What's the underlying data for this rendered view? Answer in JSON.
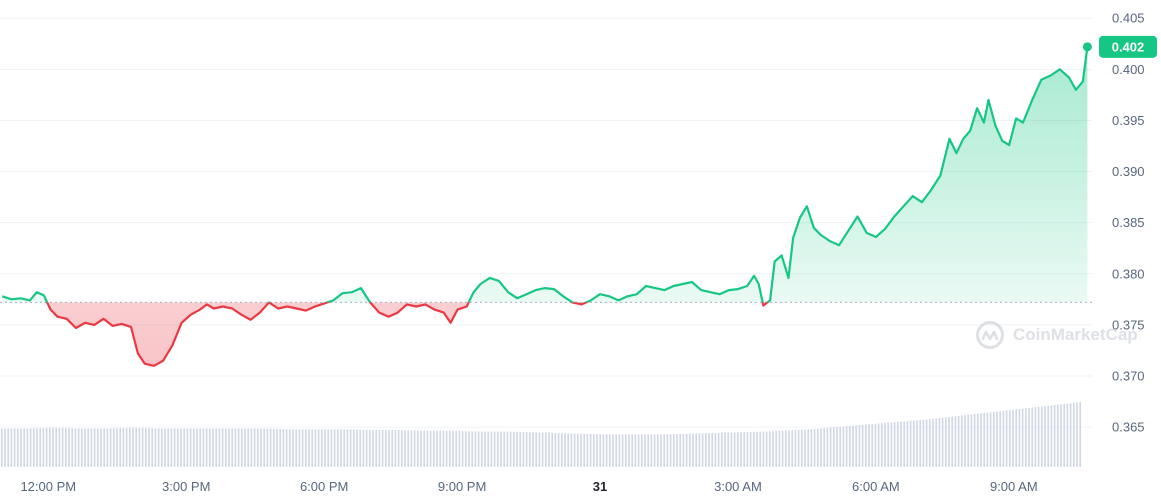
{
  "watermark": {
    "text": "CoinMarketCap",
    "icon": "coinmarketcap-logo-icon"
  },
  "colors": {
    "up": "#16c784",
    "down": "#ea3943",
    "volume": "#cfd6e4",
    "grid": "#eff2f5",
    "baseline": "#a6b0c3"
  },
  "price_tag": {
    "value": "0.402"
  },
  "chart_data": {
    "type": "line",
    "title": "",
    "xlabel": "",
    "ylabel": "",
    "ylim": [
      0.361,
      0.406
    ],
    "y_ticks": [
      "0.405",
      "0.400",
      "0.395",
      "0.390",
      "0.385",
      "0.380",
      "0.375",
      "0.370",
      "0.365"
    ],
    "x_ticks": [
      {
        "label": "12:00 PM",
        "t": 1.0,
        "bold": false
      },
      {
        "label": "3:00 PM",
        "t": 4.0,
        "bold": false
      },
      {
        "label": "6:00 PM",
        "t": 7.0,
        "bold": false
      },
      {
        "label": "9:00 PM",
        "t": 10.0,
        "bold": false
      },
      {
        "label": "31",
        "t": 13.0,
        "bold": true
      },
      {
        "label": "3:00 AM",
        "t": 16.0,
        "bold": false
      },
      {
        "label": "6:00 AM",
        "t": 19.0,
        "bold": false
      },
      {
        "label": "9:00 AM",
        "t": 22.0,
        "bold": false
      }
    ],
    "baseline": 0.3772,
    "last_value": 0.4022,
    "series": [
      {
        "values": [
          [
            0.0,
            0.3778
          ],
          [
            0.2,
            0.3775
          ],
          [
            0.4,
            0.3776
          ],
          [
            0.6,
            0.3774
          ],
          [
            0.75,
            0.3782
          ],
          [
            0.9,
            0.3779
          ],
          [
            1.05,
            0.3765
          ],
          [
            1.2,
            0.3758
          ],
          [
            1.4,
            0.3756
          ],
          [
            1.6,
            0.3747
          ],
          [
            1.8,
            0.3752
          ],
          [
            2.0,
            0.375
          ],
          [
            2.2,
            0.3756
          ],
          [
            2.4,
            0.3749
          ],
          [
            2.6,
            0.3751
          ],
          [
            2.8,
            0.3748
          ],
          [
            2.95,
            0.3722
          ],
          [
            3.1,
            0.3712
          ],
          [
            3.3,
            0.371
          ],
          [
            3.5,
            0.3715
          ],
          [
            3.7,
            0.373
          ],
          [
            3.9,
            0.3752
          ],
          [
            4.1,
            0.376
          ],
          [
            4.3,
            0.3765
          ],
          [
            4.45,
            0.377
          ],
          [
            4.6,
            0.3766
          ],
          [
            4.8,
            0.3768
          ],
          [
            5.0,
            0.3766
          ],
          [
            5.2,
            0.376
          ],
          [
            5.4,
            0.3755
          ],
          [
            5.6,
            0.3762
          ],
          [
            5.8,
            0.3772
          ],
          [
            6.0,
            0.3766
          ],
          [
            6.2,
            0.3768
          ],
          [
            6.4,
            0.3766
          ],
          [
            6.6,
            0.3764
          ],
          [
            6.8,
            0.3768
          ],
          [
            7.0,
            0.3771
          ],
          [
            7.2,
            0.3774
          ],
          [
            7.4,
            0.3781
          ],
          [
            7.6,
            0.3782
          ],
          [
            7.8,
            0.3786
          ],
          [
            8.0,
            0.3772
          ],
          [
            8.2,
            0.3762
          ],
          [
            8.4,
            0.3758
          ],
          [
            8.6,
            0.3762
          ],
          [
            8.8,
            0.377
          ],
          [
            9.0,
            0.3768
          ],
          [
            9.2,
            0.377
          ],
          [
            9.4,
            0.3765
          ],
          [
            9.6,
            0.3762
          ],
          [
            9.75,
            0.3752
          ],
          [
            9.9,
            0.3765
          ],
          [
            10.1,
            0.3768
          ],
          [
            10.25,
            0.3782
          ],
          [
            10.4,
            0.379
          ],
          [
            10.6,
            0.3796
          ],
          [
            10.8,
            0.3793
          ],
          [
            11.0,
            0.3782
          ],
          [
            11.2,
            0.3776
          ],
          [
            11.4,
            0.378
          ],
          [
            11.6,
            0.3784
          ],
          [
            11.8,
            0.3786
          ],
          [
            12.0,
            0.3785
          ],
          [
            12.2,
            0.3778
          ],
          [
            12.4,
            0.3772
          ],
          [
            12.6,
            0.377
          ],
          [
            12.8,
            0.3774
          ],
          [
            13.0,
            0.378
          ],
          [
            13.2,
            0.3778
          ],
          [
            13.4,
            0.3774
          ],
          [
            13.6,
            0.3778
          ],
          [
            13.8,
            0.378
          ],
          [
            14.0,
            0.3788
          ],
          [
            14.2,
            0.3786
          ],
          [
            14.4,
            0.3784
          ],
          [
            14.6,
            0.3788
          ],
          [
            14.8,
            0.379
          ],
          [
            15.0,
            0.3792
          ],
          [
            15.2,
            0.3784
          ],
          [
            15.4,
            0.3782
          ],
          [
            15.6,
            0.378
          ],
          [
            15.8,
            0.3784
          ],
          [
            16.0,
            0.3785
          ],
          [
            16.2,
            0.3788
          ],
          [
            16.35,
            0.3798
          ],
          [
            16.45,
            0.379
          ],
          [
            16.55,
            0.3769
          ],
          [
            16.7,
            0.3774
          ],
          [
            16.8,
            0.3812
          ],
          [
            16.95,
            0.3818
          ],
          [
            17.1,
            0.3796
          ],
          [
            17.2,
            0.3835
          ],
          [
            17.35,
            0.3855
          ],
          [
            17.5,
            0.3866
          ],
          [
            17.65,
            0.3845
          ],
          [
            17.8,
            0.3838
          ],
          [
            18.0,
            0.3832
          ],
          [
            18.2,
            0.3828
          ],
          [
            18.4,
            0.3842
          ],
          [
            18.6,
            0.3856
          ],
          [
            18.8,
            0.384
          ],
          [
            19.0,
            0.3836
          ],
          [
            19.2,
            0.3844
          ],
          [
            19.4,
            0.3856
          ],
          [
            19.6,
            0.3866
          ],
          [
            19.8,
            0.3876
          ],
          [
            20.0,
            0.387
          ],
          [
            20.2,
            0.3882
          ],
          [
            20.4,
            0.3896
          ],
          [
            20.6,
            0.3932
          ],
          [
            20.75,
            0.3918
          ],
          [
            20.9,
            0.3932
          ],
          [
            21.05,
            0.394
          ],
          [
            21.2,
            0.3962
          ],
          [
            21.35,
            0.3948
          ],
          [
            21.45,
            0.397
          ],
          [
            21.6,
            0.3945
          ],
          [
            21.75,
            0.393
          ],
          [
            21.9,
            0.3926
          ],
          [
            22.05,
            0.3952
          ],
          [
            22.2,
            0.3948
          ],
          [
            22.4,
            0.397
          ],
          [
            22.6,
            0.399
          ],
          [
            22.8,
            0.3994
          ],
          [
            23.0,
            0.4
          ],
          [
            23.2,
            0.3992
          ],
          [
            23.35,
            0.398
          ],
          [
            23.5,
            0.3988
          ],
          [
            23.6,
            0.4022
          ]
        ]
      }
    ],
    "volume": [
      0.52,
      0.52,
      0.53,
      0.52,
      0.52,
      0.53,
      0.52,
      0.52,
      0.52,
      0.52,
      0.52,
      0.51,
      0.51,
      0.51,
      0.5,
      0.5,
      0.49,
      0.49,
      0.48,
      0.48,
      0.47,
      0.46,
      0.45,
      0.44,
      0.44,
      0.44,
      0.45,
      0.46,
      0.47,
      0.48,
      0.5,
      0.52,
      0.55,
      0.58,
      0.61,
      0.64,
      0.68,
      0.72,
      0.76,
      0.8,
      0.84,
      0.88
    ]
  }
}
